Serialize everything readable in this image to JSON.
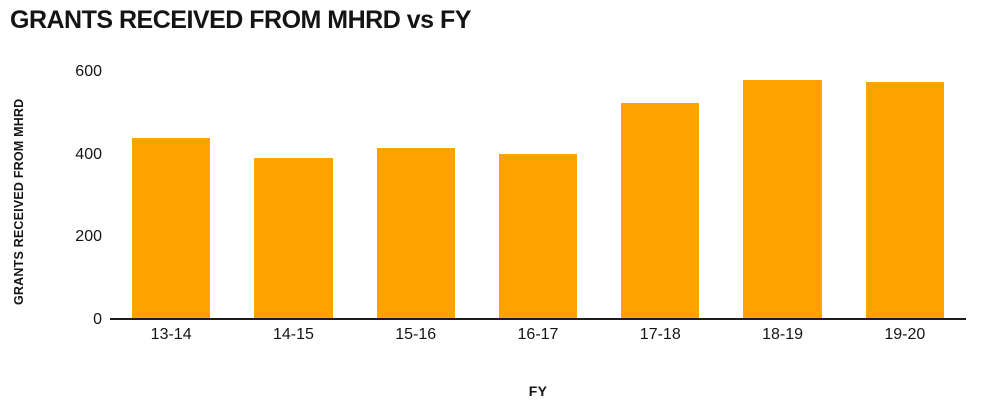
{
  "chart_data": {
    "type": "bar",
    "title": "GRANTS RECEIVED FROM MHRD vs FY",
    "xlabel": "FY",
    "ylabel": "GRANTS RECEIVED FROM MHRD",
    "categories": [
      "13-14",
      "14-15",
      "15-16",
      "16-17",
      "17-18",
      "18-19",
      "19-20"
    ],
    "values": [
      440,
      390,
      415,
      400,
      525,
      580,
      575
    ],
    "ylim": [
      0,
      600
    ],
    "yticks": [
      0,
      200,
      400,
      600
    ],
    "grid": false,
    "legend": "none",
    "bar_color": "#FFA200",
    "axis_color": "#1C1C1C",
    "background": "#FFFFFF"
  }
}
